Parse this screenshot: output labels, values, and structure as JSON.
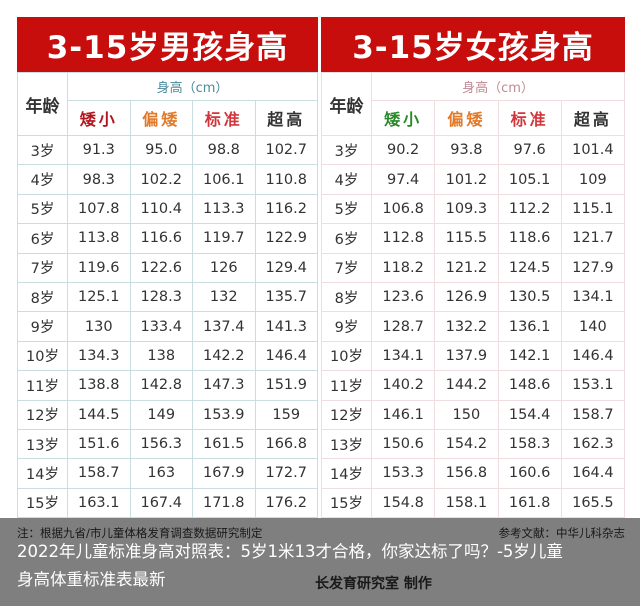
{
  "male": {
    "title": "3-15岁男孩身高",
    "age_header": "年龄",
    "unit_header": "身高（cm）",
    "categories": [
      {
        "label": "矮小",
        "color": "#b0141c"
      },
      {
        "label": "偏矮",
        "color": "#e07a2a"
      },
      {
        "label": "标准",
        "color": "#d2363c"
      },
      {
        "label": "超高",
        "color": "#333333"
      }
    ],
    "rows": [
      {
        "age": "3岁",
        "values": [
          "91.3",
          "95.0",
          "98.8",
          "102.7"
        ]
      },
      {
        "age": "4岁",
        "values": [
          "98.3",
          "102.2",
          "106.1",
          "110.8"
        ]
      },
      {
        "age": "5岁",
        "values": [
          "107.8",
          "110.4",
          "113.3",
          "116.2"
        ]
      },
      {
        "age": "6岁",
        "values": [
          "113.8",
          "116.6",
          "119.7",
          "122.9"
        ]
      },
      {
        "age": "7岁",
        "values": [
          "119.6",
          "122.6",
          "126",
          "129.4"
        ]
      },
      {
        "age": "8岁",
        "values": [
          "125.1",
          "128.3",
          "132",
          "135.7"
        ]
      },
      {
        "age": "9岁",
        "values": [
          "130",
          "133.4",
          "137.4",
          "141.3"
        ]
      },
      {
        "age": "10岁",
        "values": [
          "134.3",
          "138",
          "142.2",
          "146.4"
        ]
      },
      {
        "age": "11岁",
        "values": [
          "138.8",
          "142.8",
          "147.3",
          "151.9"
        ]
      },
      {
        "age": "12岁",
        "values": [
          "144.5",
          "149",
          "153.9",
          "159"
        ]
      },
      {
        "age": "13岁",
        "values": [
          "151.6",
          "156.3",
          "161.5",
          "166.8"
        ]
      },
      {
        "age": "14岁",
        "values": [
          "158.7",
          "163",
          "167.9",
          "172.7"
        ]
      },
      {
        "age": "15岁",
        "values": [
          "163.1",
          "167.4",
          "171.8",
          "176.2"
        ]
      }
    ]
  },
  "female": {
    "title": "3-15岁女孩身高",
    "age_header": "年龄",
    "unit_header": "身高（cm）",
    "categories": [
      {
        "label": "矮小",
        "color": "#2a8a2a"
      },
      {
        "label": "偏矮",
        "color": "#e07a2a"
      },
      {
        "label": "标准",
        "color": "#d2363c"
      },
      {
        "label": "超高",
        "color": "#333333"
      }
    ],
    "rows": [
      {
        "age": "3岁",
        "values": [
          "90.2",
          "93.8",
          "97.6",
          "101.4"
        ]
      },
      {
        "age": "4岁",
        "values": [
          "97.4",
          "101.2",
          "105.1",
          "109"
        ]
      },
      {
        "age": "5岁",
        "values": [
          "106.8",
          "109.3",
          "112.2",
          "115.1"
        ]
      },
      {
        "age": "6岁",
        "values": [
          "112.8",
          "115.5",
          "118.6",
          "121.7"
        ]
      },
      {
        "age": "7岁",
        "values": [
          "118.2",
          "121.2",
          "124.5",
          "127.9"
        ]
      },
      {
        "age": "8岁",
        "values": [
          "123.6",
          "126.9",
          "130.5",
          "134.1"
        ]
      },
      {
        "age": "9岁",
        "values": [
          "128.7",
          "132.2",
          "136.1",
          "140"
        ]
      },
      {
        "age": "10岁",
        "values": [
          "134.1",
          "137.9",
          "142.1",
          "146.4"
        ]
      },
      {
        "age": "11岁",
        "values": [
          "140.2",
          "144.2",
          "148.6",
          "153.1"
        ]
      },
      {
        "age": "12岁",
        "values": [
          "146.1",
          "150",
          "154.4",
          "158.7"
        ]
      },
      {
        "age": "13岁",
        "values": [
          "150.6",
          "154.2",
          "158.3",
          "162.3"
        ]
      },
      {
        "age": "14岁",
        "values": [
          "153.3",
          "156.8",
          "160.6",
          "164.4"
        ]
      },
      {
        "age": "15岁",
        "values": [
          "154.8",
          "158.1",
          "161.8",
          "165.5"
        ]
      }
    ]
  },
  "footer": {
    "note": "注：根据九省/市儿童体格发育调查数据研究制定",
    "reference": "参考文献：中华儿科杂志",
    "maker": "长发育研究室 制作"
  },
  "caption": "2022年儿童标准身高对照表：5岁1米13才合格，你家达标了吗？-5岁儿童身高体重标准表最新",
  "colors": {
    "banner": "#c80d0d"
  }
}
